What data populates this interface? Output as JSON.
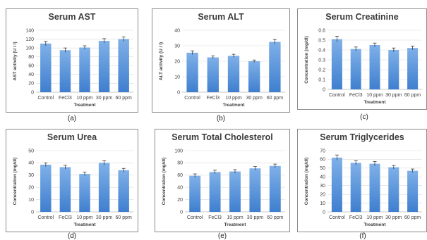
{
  "theme": {
    "bar_color_top": "#7fb0e8",
    "bar_color_bottom": "#3f7fcf",
    "title_color": "#3d3d3d"
  },
  "captions": [
    "(a)",
    "(b)",
    "(c)",
    "(d)",
    "(e)",
    "(f)"
  ],
  "chart_data": [
    {
      "type": "bar",
      "title": "Serum AST",
      "xlabel": "Treatment",
      "ylabel": "AST activity (U / l)",
      "categories": [
        "Control",
        "FeCl3",
        "10 ppm",
        "30 ppm",
        "60 ppm"
      ],
      "values": [
        110,
        95,
        101,
        116,
        120
      ],
      "errors": [
        5,
        5,
        4,
        5,
        5
      ],
      "yticks": [
        0,
        20,
        40,
        60,
        80,
        100,
        120,
        140
      ],
      "ylim": [
        0,
        140
      ]
    },
    {
      "type": "bar",
      "title": "Serum ALT",
      "xlabel": "Treatment",
      "ylabel": "ALT activity (U / l)",
      "categories": [
        "Control",
        "FeCl3",
        "10 ppm",
        "30 ppm",
        "60 ppm"
      ],
      "values": [
        25.5,
        22.5,
        23.5,
        20,
        32.5
      ],
      "errors": [
        1.2,
        1.0,
        1.0,
        0.8,
        1.5
      ],
      "yticks": [
        0,
        10,
        20,
        30,
        40
      ],
      "ylim": [
        0,
        40
      ]
    },
    {
      "type": "bar",
      "title": "Serum Creatinine",
      "xlabel": "Treatment",
      "ylabel": "Concentration (mg/dl)",
      "categories": [
        "Control",
        "FeCl3",
        "10 ppm",
        "30 ppm",
        "60 ppm"
      ],
      "values": [
        0.51,
        0.41,
        0.45,
        0.4,
        0.42
      ],
      "errors": [
        0.03,
        0.02,
        0.02,
        0.02,
        0.02
      ],
      "yticks": [
        0,
        0.1,
        0.2,
        0.3,
        0.4,
        0.5,
        0.6
      ],
      "ylim": [
        0,
        0.6
      ]
    },
    {
      "type": "bar",
      "title": "Serum Urea",
      "xlabel": "Treatment",
      "ylabel": "Concentration (mg/dl)",
      "categories": [
        "Control",
        "FeCl3",
        "10 ppm",
        "30 ppm",
        "60 ppm"
      ],
      "values": [
        38.5,
        36.5,
        31,
        40,
        34
      ],
      "errors": [
        1.5,
        1.5,
        1.5,
        1.8,
        1.5
      ],
      "yticks": [
        0,
        10,
        20,
        30,
        40,
        50
      ],
      "ylim": [
        0,
        50
      ]
    },
    {
      "type": "bar",
      "title": "Serum Total Cholesterol",
      "xlabel": "Treatment",
      "ylabel": "Concentration (mg/dl)",
      "categories": [
        "Control",
        "FeCl3",
        "10 ppm",
        "30 ppm",
        "60 ppm"
      ],
      "values": [
        59,
        65,
        66,
        71,
        75
      ],
      "errors": [
        3,
        3,
        3,
        3,
        3
      ],
      "yticks": [
        0,
        20,
        40,
        60,
        80,
        100
      ],
      "ylim": [
        0,
        100
      ]
    },
    {
      "type": "bar",
      "title": "Serum Triglycerides",
      "xlabel": "Treatment",
      "ylabel": "Concentration (mg/dl)",
      "categories": [
        "Control",
        "FeCl3",
        "10 ppm",
        "30 ppm",
        "60 ppm"
      ],
      "values": [
        62,
        56,
        55,
        51,
        47
      ],
      "errors": [
        3,
        2.5,
        2.5,
        2,
        2
      ],
      "yticks": [
        0,
        10,
        20,
        30,
        40,
        50,
        60,
        70
      ],
      "ylim": [
        0,
        70
      ]
    }
  ]
}
